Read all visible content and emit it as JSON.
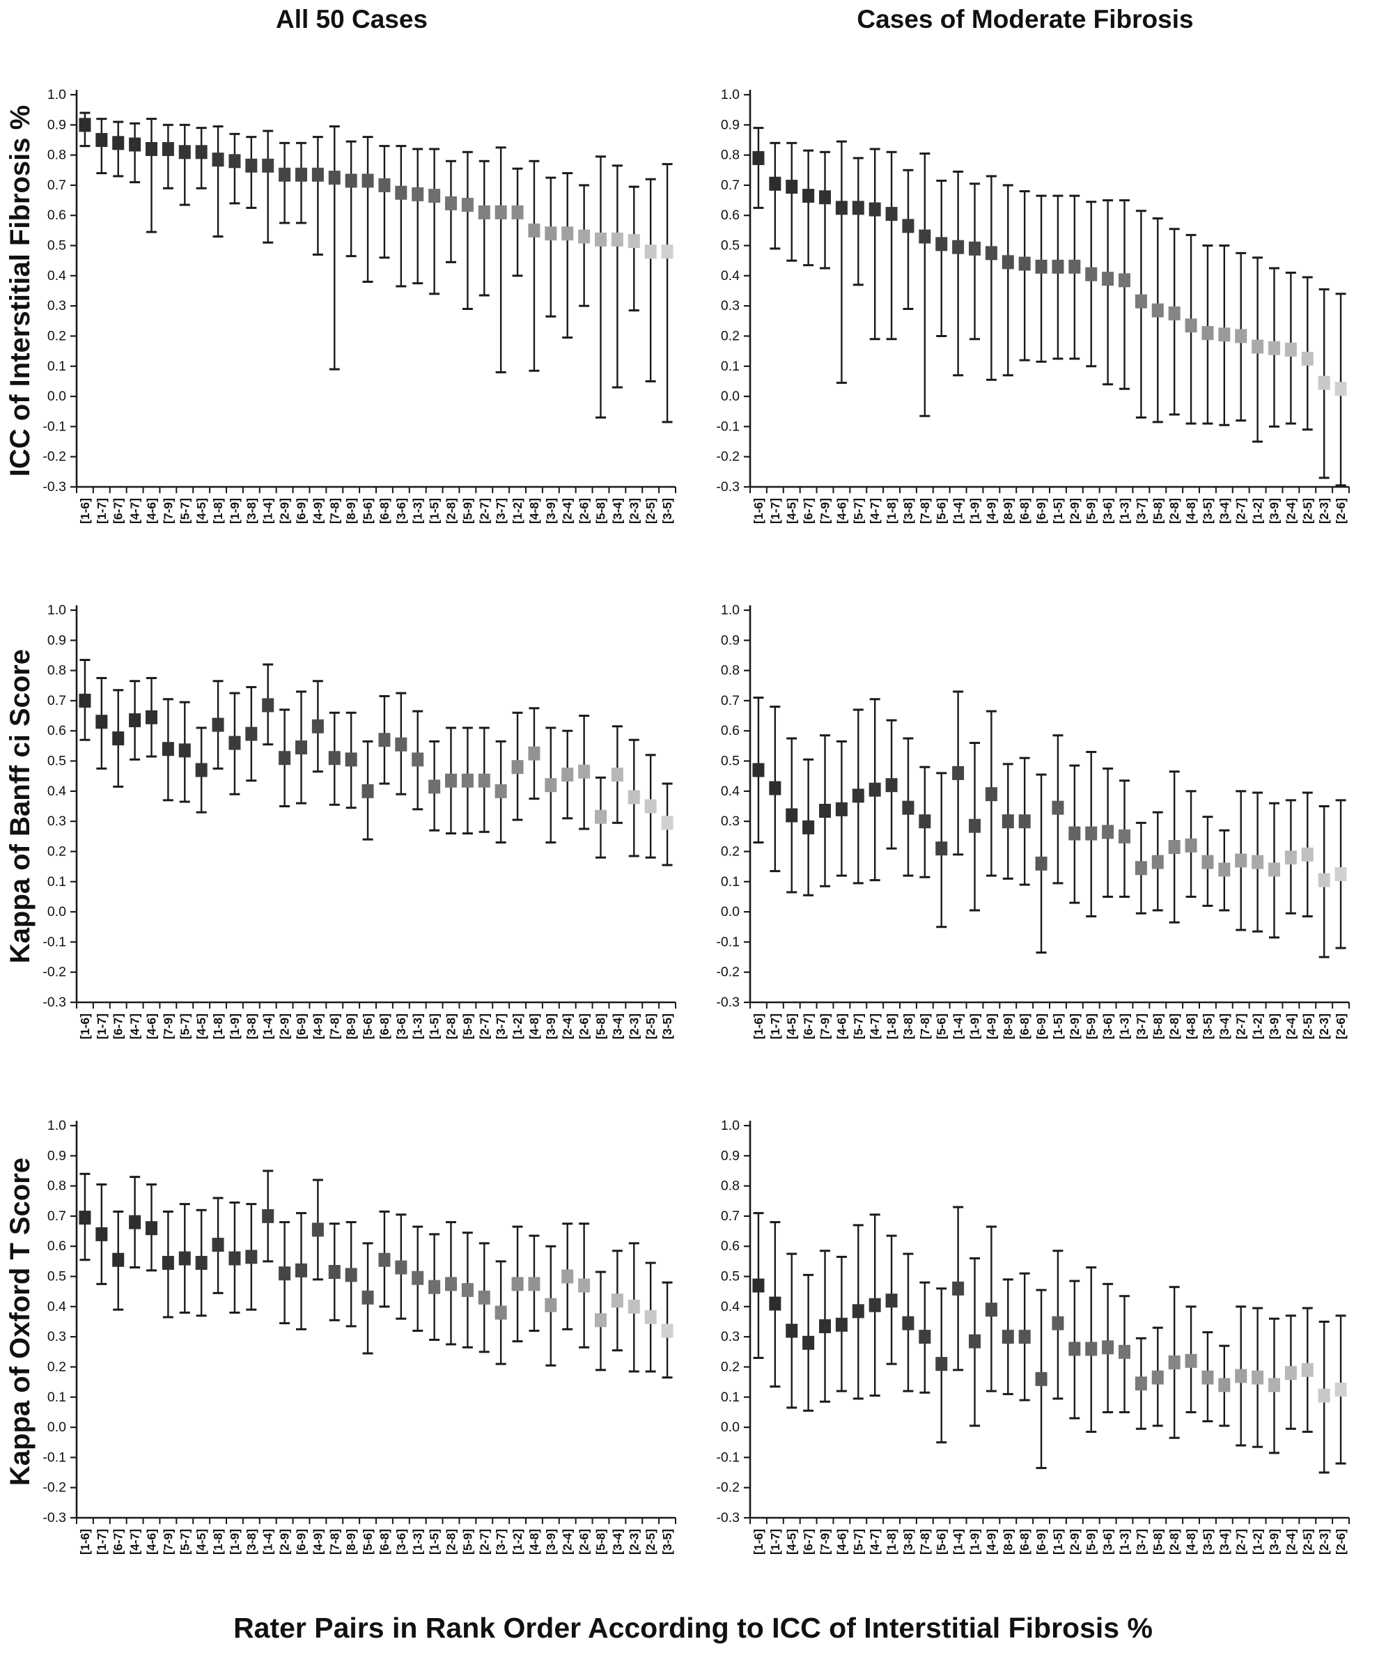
{
  "figure": {
    "column_titles": [
      "All 50 Cases",
      "Cases of Moderate Fibrosis"
    ],
    "row_labels": [
      "ICC of Interstitial Fibrosis %",
      "Kappa of Banff ci Score",
      "Kappa of Oxford T Score"
    ],
    "x_axis_title": "Rater Pairs in Rank Order According to ICC of Interstitial Fibrosis %",
    "colors": {
      "marker_darkest": "#2d2d2d",
      "marker_lightest": "#d0d0d0",
      "axis": "#1a1a1a",
      "background": "#ffffff"
    }
  },
  "chart_data": [
    {
      "id": "icc-all-50",
      "type": "scatter",
      "row": 0,
      "col": 0,
      "column_title": "All 50 Cases",
      "ylabel": "ICC of Interstitial Fibrosis %",
      "ylim": [
        -0.3,
        1.0
      ],
      "ytick_step": 0.1,
      "grid": false,
      "legend": "none",
      "error_bars": true,
      "categories": [
        "[1-6]",
        "[1-7]",
        "[6-7]",
        "[4-7]",
        "[4-6]",
        "[7-9]",
        "[5-7]",
        "[4-5]",
        "[1-8]",
        "[1-9]",
        "[3-8]",
        "[1-4]",
        "[2-9]",
        "[6-9]",
        "[4-9]",
        "[7-8]",
        "[8-9]",
        "[5-6]",
        "[6-8]",
        "[3-6]",
        "[1-3]",
        "[1-5]",
        "[2-8]",
        "[5-9]",
        "[2-7]",
        "[3-7]",
        "[1-2]",
        "[4-8]",
        "[3-9]",
        "[2-4]",
        "[2-6]",
        "[5-8]",
        "[3-4]",
        "[2-3]",
        "[2-5]",
        "[3-5]"
      ],
      "values": [
        0.9,
        0.85,
        0.84,
        0.835,
        0.82,
        0.82,
        0.81,
        0.81,
        0.785,
        0.78,
        0.765,
        0.765,
        0.735,
        0.735,
        0.735,
        0.725,
        0.715,
        0.715,
        0.7,
        0.675,
        0.67,
        0.665,
        0.64,
        0.635,
        0.61,
        0.61,
        0.61,
        0.55,
        0.54,
        0.54,
        0.53,
        0.52,
        0.52,
        0.515,
        0.48,
        0.48
      ],
      "ci_low": [
        0.83,
        0.74,
        0.73,
        0.71,
        0.545,
        0.69,
        0.635,
        0.69,
        0.53,
        0.64,
        0.625,
        0.51,
        0.575,
        0.575,
        0.47,
        0.09,
        0.465,
        0.38,
        0.46,
        0.365,
        0.375,
        0.34,
        0.445,
        0.29,
        0.335,
        0.08,
        0.4,
        0.085,
        0.265,
        0.195,
        0.3,
        -0.07,
        0.03,
        0.285,
        0.05,
        -0.085
      ],
      "ci_high": [
        0.94,
        0.92,
        0.91,
        0.905,
        0.92,
        0.9,
        0.9,
        0.89,
        0.895,
        0.87,
        0.86,
        0.88,
        0.84,
        0.84,
        0.86,
        0.895,
        0.845,
        0.86,
        0.83,
        0.83,
        0.82,
        0.82,
        0.78,
        0.81,
        0.78,
        0.825,
        0.755,
        0.78,
        0.725,
        0.74,
        0.7,
        0.795,
        0.765,
        0.695,
        0.72,
        0.77
      ]
    },
    {
      "id": "icc-moderate",
      "type": "scatter",
      "row": 0,
      "col": 1,
      "column_title": "Cases of Moderate Fibrosis",
      "ylabel": "ICC of Interstitial Fibrosis %",
      "ylim": [
        -0.3,
        1.0
      ],
      "ytick_step": 0.1,
      "grid": false,
      "legend": "none",
      "error_bars": true,
      "categories": [
        "[1-6]",
        "[1-7]",
        "[4-5]",
        "[6-7]",
        "[7-9]",
        "[4-6]",
        "[5-7]",
        "[4-7]",
        "[1-8]",
        "[3-8]",
        "[7-8]",
        "[5-6]",
        "[1-4]",
        "[1-9]",
        "[4-9]",
        "[8-9]",
        "[6-8]",
        "[6-9]",
        "[1-5]",
        "[2-9]",
        "[5-9]",
        "[3-6]",
        "[1-3]",
        "[3-7]",
        "[5-8]",
        "[2-8]",
        "[4-8]",
        "[3-5]",
        "[3-4]",
        "[2-7]",
        "[1-2]",
        "[3-9]",
        "[2-4]",
        "[2-5]",
        "[2-3]",
        "[2-6]"
      ],
      "values": [
        0.79,
        0.705,
        0.695,
        0.665,
        0.66,
        0.625,
        0.625,
        0.62,
        0.605,
        0.565,
        0.53,
        0.505,
        0.495,
        0.49,
        0.475,
        0.445,
        0.44,
        0.43,
        0.43,
        0.43,
        0.405,
        0.39,
        0.385,
        0.315,
        0.285,
        0.275,
        0.235,
        0.21,
        0.205,
        0.2,
        0.165,
        0.16,
        0.155,
        0.125,
        0.045,
        0.025
      ],
      "ci_low": [
        0.625,
        0.49,
        0.45,
        0.435,
        0.425,
        0.045,
        0.37,
        0.19,
        0.19,
        0.29,
        -0.065,
        0.2,
        0.07,
        0.19,
        0.055,
        0.07,
        0.12,
        0.115,
        0.125,
        0.125,
        0.1,
        0.04,
        0.025,
        -0.07,
        -0.085,
        -0.06,
        -0.09,
        -0.09,
        -0.095,
        -0.08,
        -0.15,
        -0.1,
        -0.09,
        -0.11,
        -0.27,
        -0.295
      ],
      "ci_high": [
        0.89,
        0.84,
        0.84,
        0.815,
        0.81,
        0.845,
        0.79,
        0.82,
        0.81,
        0.75,
        0.805,
        0.715,
        0.745,
        0.705,
        0.73,
        0.7,
        0.68,
        0.665,
        0.665,
        0.665,
        0.645,
        0.65,
        0.65,
        0.615,
        0.59,
        0.555,
        0.535,
        0.5,
        0.5,
        0.475,
        0.46,
        0.425,
        0.41,
        0.395,
        0.355,
        0.34
      ]
    },
    {
      "id": "banff-ci-all-50",
      "type": "scatter",
      "row": 1,
      "col": 0,
      "column_title": "All 50 Cases",
      "ylabel": "Kappa of Banff ci Score",
      "ylim": [
        -0.3,
        1.0
      ],
      "ytick_step": 0.1,
      "grid": false,
      "legend": "none",
      "error_bars": true,
      "categories": [
        "[1-6]",
        "[1-7]",
        "[6-7]",
        "[4-7]",
        "[4-6]",
        "[7-9]",
        "[5-7]",
        "[4-5]",
        "[1-8]",
        "[1-9]",
        "[3-8]",
        "[1-4]",
        "[2-9]",
        "[6-9]",
        "[4-9]",
        "[7-8]",
        "[8-9]",
        "[5-6]",
        "[6-8]",
        "[3-6]",
        "[1-3]",
        "[1-5]",
        "[2-8]",
        "[5-9]",
        "[2-7]",
        "[3-7]",
        "[1-2]",
        "[4-8]",
        "[3-9]",
        "[2-4]",
        "[2-6]",
        "[5-8]",
        "[3-4]",
        "[2-3]",
        "[2-5]",
        "[3-5]"
      ],
      "values": [
        0.7,
        0.63,
        0.575,
        0.635,
        0.645,
        0.54,
        0.535,
        0.47,
        0.62,
        0.56,
        0.59,
        0.685,
        0.51,
        0.545,
        0.615,
        0.51,
        0.505,
        0.4,
        0.57,
        0.555,
        0.505,
        0.415,
        0.435,
        0.435,
        0.435,
        0.4,
        0.48,
        0.525,
        0.42,
        0.455,
        0.465,
        0.315,
        0.455,
        0.38,
        0.35,
        0.295
      ],
      "ci_low": [
        0.57,
        0.475,
        0.415,
        0.505,
        0.515,
        0.37,
        0.365,
        0.33,
        0.475,
        0.39,
        0.435,
        0.555,
        0.35,
        0.36,
        0.465,
        0.355,
        0.345,
        0.24,
        0.425,
        0.39,
        0.34,
        0.27,
        0.26,
        0.26,
        0.265,
        0.23,
        0.305,
        0.375,
        0.23,
        0.31,
        0.275,
        0.18,
        0.295,
        0.185,
        0.18,
        0.155
      ],
      "ci_high": [
        0.835,
        0.775,
        0.735,
        0.765,
        0.775,
        0.705,
        0.695,
        0.61,
        0.765,
        0.725,
        0.745,
        0.82,
        0.67,
        0.73,
        0.765,
        0.66,
        0.66,
        0.565,
        0.715,
        0.725,
        0.665,
        0.565,
        0.61,
        0.61,
        0.61,
        0.565,
        0.66,
        0.675,
        0.61,
        0.6,
        0.65,
        0.445,
        0.615,
        0.57,
        0.52,
        0.425
      ]
    },
    {
      "id": "banff-ci-moderate",
      "type": "scatter",
      "row": 1,
      "col": 1,
      "column_title": "Cases of Moderate Fibrosis",
      "ylabel": "Kappa of Banff ci Score",
      "ylim": [
        -0.3,
        1.0
      ],
      "ytick_step": 0.1,
      "grid": false,
      "legend": "none",
      "error_bars": true,
      "categories": [
        "[1-6]",
        "[1-7]",
        "[4-5]",
        "[6-7]",
        "[7-9]",
        "[4-6]",
        "[5-7]",
        "[4-7]",
        "[1-8]",
        "[3-8]",
        "[7-8]",
        "[5-6]",
        "[1-4]",
        "[1-9]",
        "[4-9]",
        "[8-9]",
        "[6-8]",
        "[6-9]",
        "[1-5]",
        "[2-9]",
        "[5-9]",
        "[3-6]",
        "[1-3]",
        "[3-7]",
        "[5-8]",
        "[2-8]",
        "[4-8]",
        "[3-5]",
        "[3-4]",
        "[2-7]",
        "[1-2]",
        "[3-9]",
        "[2-4]",
        "[2-5]",
        "[2-3]",
        "[2-6]"
      ],
      "values": [
        0.47,
        0.41,
        0.32,
        0.28,
        0.335,
        0.34,
        0.385,
        0.405,
        0.42,
        0.345,
        0.3,
        0.21,
        0.46,
        0.285,
        0.39,
        0.3,
        0.3,
        0.16,
        0.345,
        0.26,
        0.26,
        0.265,
        0.25,
        0.145,
        0.165,
        0.215,
        0.22,
        0.165,
        0.14,
        0.17,
        0.165,
        0.14,
        0.18,
        0.19,
        0.105,
        0.125
      ],
      "ci_low": [
        0.23,
        0.135,
        0.065,
        0.055,
        0.085,
        0.12,
        0.095,
        0.105,
        0.21,
        0.12,
        0.115,
        -0.05,
        0.19,
        0.005,
        0.12,
        0.11,
        0.09,
        -0.135,
        0.095,
        0.03,
        -0.015,
        0.05,
        0.05,
        -0.005,
        0.005,
        -0.035,
        0.05,
        0.02,
        0.005,
        -0.06,
        -0.065,
        -0.085,
        -0.005,
        -0.015,
        -0.15,
        -0.12
      ],
      "ci_high": [
        0.71,
        0.68,
        0.575,
        0.505,
        0.585,
        0.565,
        0.67,
        0.705,
        0.635,
        0.575,
        0.48,
        0.46,
        0.73,
        0.56,
        0.665,
        0.49,
        0.51,
        0.455,
        0.585,
        0.485,
        0.53,
        0.475,
        0.435,
        0.295,
        0.33,
        0.465,
        0.4,
        0.315,
        0.27,
        0.4,
        0.395,
        0.36,
        0.37,
        0.395,
        0.35,
        0.37
      ]
    },
    {
      "id": "oxford-t-all-50",
      "type": "scatter",
      "row": 2,
      "col": 0,
      "column_title": "All 50 Cases",
      "ylabel": "Kappa of Oxford T Score",
      "ylim": [
        -0.3,
        1.0
      ],
      "ytick_step": 0.1,
      "grid": false,
      "legend": "none",
      "error_bars": true,
      "categories": [
        "[1-6]",
        "[1-7]",
        "[6-7]",
        "[4-7]",
        "[4-6]",
        "[7-9]",
        "[5-7]",
        "[4-5]",
        "[1-8]",
        "[1-9]",
        "[3-8]",
        "[1-4]",
        "[2-9]",
        "[6-9]",
        "[4-9]",
        "[7-8]",
        "[8-9]",
        "[5-6]",
        "[6-8]",
        "[3-6]",
        "[1-3]",
        "[1-5]",
        "[2-8]",
        "[5-9]",
        "[2-7]",
        "[3-7]",
        "[1-2]",
        "[4-8]",
        "[3-9]",
        "[2-4]",
        "[2-6]",
        "[5-8]",
        "[3-4]",
        "[2-3]",
        "[2-5]",
        "[3-5]"
      ],
      "values": [
        0.695,
        0.64,
        0.555,
        0.68,
        0.66,
        0.545,
        0.56,
        0.545,
        0.605,
        0.56,
        0.565,
        0.7,
        0.51,
        0.52,
        0.655,
        0.515,
        0.505,
        0.43,
        0.555,
        0.53,
        0.495,
        0.465,
        0.475,
        0.455,
        0.43,
        0.38,
        0.475,
        0.475,
        0.405,
        0.5,
        0.47,
        0.355,
        0.42,
        0.4,
        0.365,
        0.32
      ],
      "ci_low": [
        0.555,
        0.475,
        0.39,
        0.53,
        0.52,
        0.365,
        0.38,
        0.37,
        0.445,
        0.38,
        0.39,
        0.55,
        0.345,
        0.325,
        0.49,
        0.355,
        0.335,
        0.245,
        0.4,
        0.36,
        0.32,
        0.29,
        0.275,
        0.265,
        0.25,
        0.21,
        0.285,
        0.32,
        0.205,
        0.325,
        0.265,
        0.19,
        0.255,
        0.185,
        0.185,
        0.165
      ],
      "ci_high": [
        0.84,
        0.805,
        0.715,
        0.83,
        0.805,
        0.715,
        0.74,
        0.72,
        0.76,
        0.745,
        0.74,
        0.85,
        0.68,
        0.71,
        0.82,
        0.675,
        0.68,
        0.61,
        0.715,
        0.705,
        0.665,
        0.64,
        0.68,
        0.645,
        0.61,
        0.55,
        0.665,
        0.635,
        0.6,
        0.675,
        0.675,
        0.515,
        0.585,
        0.61,
        0.545,
        0.48
      ]
    },
    {
      "id": "oxford-t-moderate",
      "type": "scatter",
      "row": 2,
      "col": 1,
      "column_title": "Cases of Moderate Fibrosis",
      "ylabel": "Kappa of Oxford T Score",
      "ylim": [
        -0.3,
        1.0
      ],
      "ytick_step": 0.1,
      "grid": false,
      "legend": "none",
      "error_bars": true,
      "categories": [
        "[1-6]",
        "[1-7]",
        "[4-5]",
        "[6-7]",
        "[7-9]",
        "[4-6]",
        "[5-7]",
        "[4-7]",
        "[1-8]",
        "[3-8]",
        "[7-8]",
        "[5-6]",
        "[1-4]",
        "[1-9]",
        "[4-9]",
        "[8-9]",
        "[6-8]",
        "[6-9]",
        "[1-5]",
        "[2-9]",
        "[5-9]",
        "[3-6]",
        "[1-3]",
        "[3-7]",
        "[5-8]",
        "[2-8]",
        "[4-8]",
        "[3-5]",
        "[3-4]",
        "[2-7]",
        "[1-2]",
        "[3-9]",
        "[2-4]",
        "[2-5]",
        "[2-3]",
        "[2-6]"
      ],
      "values": [
        0.47,
        0.41,
        0.32,
        0.28,
        0.335,
        0.34,
        0.385,
        0.405,
        0.42,
        0.345,
        0.3,
        0.21,
        0.46,
        0.285,
        0.39,
        0.3,
        0.3,
        0.16,
        0.345,
        0.26,
        0.26,
        0.265,
        0.25,
        0.145,
        0.165,
        0.215,
        0.22,
        0.165,
        0.14,
        0.17,
        0.165,
        0.14,
        0.18,
        0.19,
        0.105,
        0.125
      ],
      "ci_low": [
        0.23,
        0.135,
        0.065,
        0.055,
        0.085,
        0.12,
        0.095,
        0.105,
        0.21,
        0.12,
        0.115,
        -0.05,
        0.19,
        0.005,
        0.12,
        0.11,
        0.09,
        -0.135,
        0.095,
        0.03,
        -0.015,
        0.05,
        0.05,
        -0.005,
        0.005,
        -0.035,
        0.05,
        0.02,
        0.005,
        -0.06,
        -0.065,
        -0.085,
        -0.005,
        -0.015,
        -0.15,
        -0.12
      ],
      "ci_high": [
        0.71,
        0.68,
        0.575,
        0.505,
        0.585,
        0.565,
        0.67,
        0.705,
        0.635,
        0.575,
        0.48,
        0.46,
        0.73,
        0.56,
        0.665,
        0.49,
        0.51,
        0.455,
        0.585,
        0.485,
        0.53,
        0.475,
        0.435,
        0.295,
        0.33,
        0.465,
        0.4,
        0.315,
        0.27,
        0.4,
        0.395,
        0.36,
        0.37,
        0.395,
        0.35,
        0.37
      ]
    }
  ]
}
